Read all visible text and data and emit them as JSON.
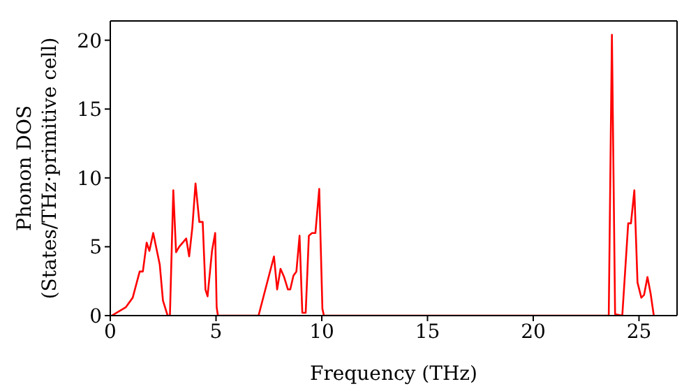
{
  "chart_data": {
    "type": "line",
    "xlabel": "Frequency (THz)",
    "ylabel": [
      "Phonon DOS",
      "(States/THz·primitive cell)"
    ],
    "series": [
      {
        "color": "#ff0000",
        "x": [
          0.07,
          0.73,
          1.06,
          1.39,
          1.54,
          1.72,
          1.85,
          2.03,
          2.34,
          2.49,
          2.71,
          2.82,
          2.98,
          3.11,
          3.26,
          3.59,
          3.73,
          3.88,
          4.03,
          4.21,
          4.37,
          4.5,
          4.6,
          4.81,
          4.96,
          5.03,
          5.09,
          7.01,
          7.74,
          7.89,
          8.05,
          8.22,
          8.4,
          8.51,
          8.66,
          8.8,
          8.95,
          9.08,
          9.24,
          9.39,
          9.54,
          9.7,
          9.88,
          10.03,
          10.1,
          23.57,
          23.72,
          23.87,
          24.21,
          24.49,
          24.62,
          24.78,
          24.93,
          25.11,
          25.24,
          25.4,
          25.55,
          25.7
        ],
        "values": [
          0,
          0.6,
          1.3,
          3.2,
          3.2,
          5.3,
          4.7,
          6.0,
          3.7,
          1.1,
          0,
          0,
          9.1,
          4.6,
          5.0,
          5.6,
          4.3,
          6.4,
          9.6,
          6.8,
          6.8,
          1.9,
          1.4,
          4.7,
          6.0,
          0.6,
          0,
          0,
          4.3,
          1.9,
          3.4,
          2.8,
          1.9,
          1.9,
          2.9,
          3.2,
          5.8,
          0.2,
          0.2,
          5.8,
          6.0,
          6.0,
          9.2,
          0.5,
          0,
          0,
          20.4,
          0.1,
          0,
          6.7,
          6.7,
          9.1,
          2.4,
          1.3,
          1.5,
          2.8,
          1.6,
          0
        ]
      }
    ],
    "xlim": [
      0,
      26.8
    ],
    "xticks": [
      0,
      5,
      10,
      15,
      20,
      25
    ],
    "ylim": [
      0,
      21.4
    ],
    "yticks": [
      0,
      5,
      10,
      15,
      20
    ],
    "grid": false,
    "legend": false,
    "marker": "none",
    "line_style": "solid"
  }
}
